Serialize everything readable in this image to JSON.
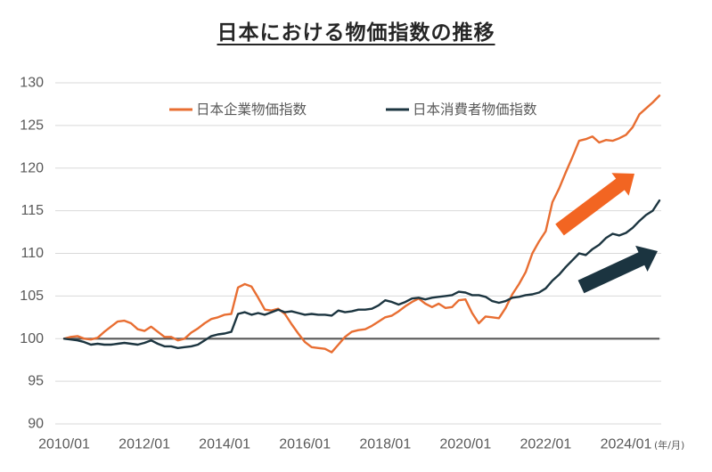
{
  "chart_data": {
    "type": "line",
    "title": "日本における物価指数の推移",
    "x": [
      "2010/01",
      "2010/03",
      "2010/05",
      "2010/07",
      "2010/09",
      "2010/11",
      "2011/01",
      "2011/03",
      "2011/05",
      "2011/07",
      "2011/09",
      "2011/11",
      "2012/01",
      "2012/03",
      "2012/05",
      "2012/07",
      "2012/09",
      "2012/11",
      "2013/01",
      "2013/03",
      "2013/05",
      "2013/07",
      "2013/09",
      "2013/11",
      "2014/01",
      "2014/03",
      "2014/05",
      "2014/07",
      "2014/09",
      "2014/11",
      "2015/01",
      "2015/03",
      "2015/05",
      "2015/07",
      "2015/09",
      "2015/11",
      "2016/01",
      "2016/03",
      "2016/05",
      "2016/07",
      "2016/09",
      "2016/11",
      "2017/01",
      "2017/03",
      "2017/05",
      "2017/07",
      "2017/09",
      "2017/11",
      "2018/01",
      "2018/03",
      "2018/05",
      "2018/07",
      "2018/09",
      "2018/11",
      "2019/01",
      "2019/03",
      "2019/05",
      "2019/07",
      "2019/09",
      "2019/11",
      "2020/01",
      "2020/03",
      "2020/05",
      "2020/07",
      "2020/09",
      "2020/11",
      "2021/01",
      "2021/03",
      "2021/05",
      "2021/07",
      "2021/09",
      "2021/11",
      "2022/01",
      "2022/03",
      "2022/05",
      "2022/07",
      "2022/09",
      "2022/11",
      "2023/01",
      "2023/03",
      "2023/05",
      "2023/07",
      "2023/09",
      "2023/11",
      "2024/01",
      "2024/03",
      "2024/05",
      "2024/07",
      "2024/09",
      "2024/11"
    ],
    "x_tick_labels": [
      "2010/01",
      "2012/01",
      "2014/01",
      "2016/01",
      "2018/01",
      "2020/01",
      "2022/01",
      "2024/01"
    ],
    "x_unit_label": "(年/月)",
    "ylim": [
      90,
      130
    ],
    "y_ticks": [
      90,
      95,
      100,
      105,
      110,
      115,
      120,
      125,
      130
    ],
    "grid": "horizontal",
    "legend_position": "top",
    "reference_line": {
      "value": 100,
      "color": "#595959"
    },
    "series": [
      {
        "name": "日本企業物価指数",
        "color": "#E86E32",
        "values": [
          100.0,
          100.2,
          100.3,
          100.0,
          99.9,
          100.1,
          100.8,
          101.4,
          102.0,
          102.1,
          101.8,
          101.1,
          100.9,
          101.4,
          100.8,
          100.2,
          100.2,
          99.8,
          100.0,
          100.7,
          101.2,
          101.8,
          102.3,
          102.5,
          102.8,
          102.9,
          106.0,
          106.4,
          106.1,
          104.8,
          103.4,
          103.3,
          103.5,
          102.9,
          101.7,
          100.6,
          99.6,
          99.0,
          98.9,
          98.8,
          98.4,
          99.3,
          100.2,
          100.8,
          101.0,
          101.1,
          101.5,
          102.0,
          102.5,
          102.7,
          103.2,
          103.8,
          104.3,
          104.7,
          104.1,
          103.7,
          104.1,
          103.6,
          103.7,
          104.5,
          104.6,
          103.0,
          101.8,
          102.6,
          102.5,
          102.4,
          103.6,
          105.2,
          106.4,
          107.8,
          110.0,
          111.4,
          112.6,
          116.0,
          117.6,
          119.5,
          121.3,
          123.2,
          123.4,
          123.7,
          123.0,
          123.3,
          123.2,
          123.5,
          123.9,
          124.8,
          126.3,
          127.0,
          127.7,
          128.5
        ]
      },
      {
        "name": "日本消費者物価指数",
        "color": "#1C3540",
        "values": [
          100.0,
          99.9,
          99.8,
          99.6,
          99.3,
          99.4,
          99.3,
          99.3,
          99.4,
          99.5,
          99.4,
          99.3,
          99.5,
          99.8,
          99.4,
          99.1,
          99.1,
          98.9,
          99.0,
          99.1,
          99.3,
          99.8,
          100.3,
          100.5,
          100.6,
          100.8,
          102.9,
          103.1,
          102.8,
          103.0,
          102.8,
          103.1,
          103.4,
          103.1,
          103.2,
          103.0,
          102.8,
          102.9,
          102.8,
          102.8,
          102.7,
          103.3,
          103.1,
          103.2,
          103.4,
          103.4,
          103.5,
          103.9,
          104.5,
          104.3,
          104.0,
          104.3,
          104.7,
          104.8,
          104.6,
          104.8,
          104.9,
          105.0,
          105.1,
          105.5,
          105.4,
          105.1,
          105.1,
          104.9,
          104.4,
          104.2,
          104.4,
          104.8,
          104.9,
          105.1,
          105.2,
          105.4,
          105.9,
          106.8,
          107.5,
          108.4,
          109.2,
          110.0,
          109.8,
          110.5,
          111.0,
          111.8,
          112.3,
          112.1,
          112.4,
          113.0,
          113.8,
          114.5,
          115.0,
          116.2
        ]
      }
    ],
    "arrows": [
      {
        "icon": "up-right-arrow-icon",
        "color": "#F26522"
      },
      {
        "icon": "up-right-arrow-icon",
        "color": "#1B3440"
      }
    ]
  },
  "colors": {
    "grid": "#D9D9D9",
    "tick_text": "#595959",
    "legend_text": "#595959",
    "title": "#262626"
  }
}
